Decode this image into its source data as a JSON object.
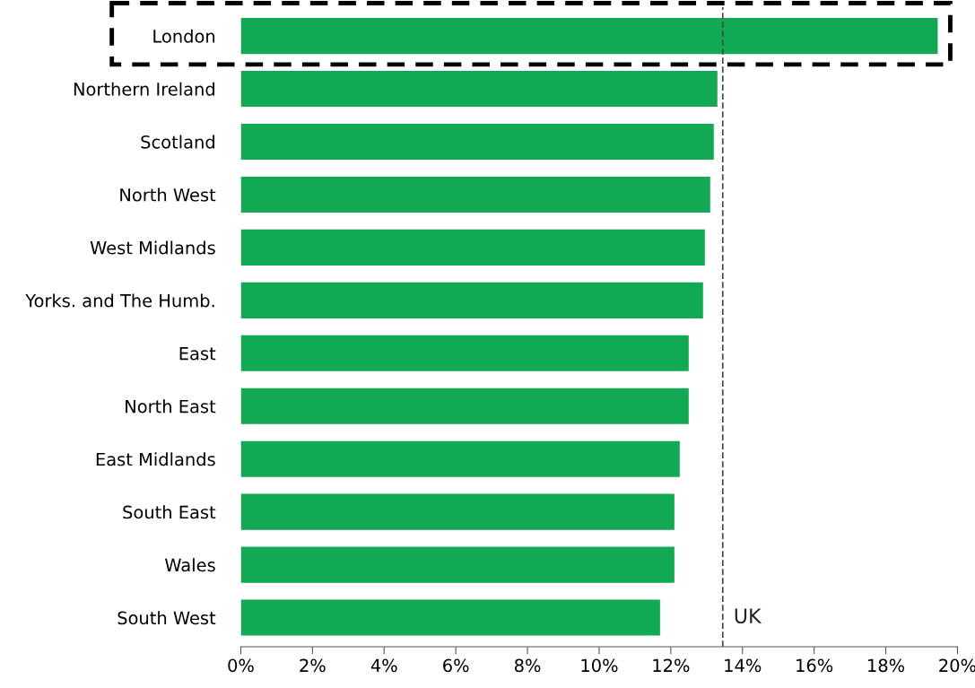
{
  "chart_data": {
    "type": "bar",
    "orientation": "horizontal",
    "categories": [
      "London",
      "Northern Ireland",
      "Scotland",
      "North West",
      "West Midlands",
      "Yorks. and The Humb.",
      "East",
      "North East",
      "East Midlands",
      "South East",
      "Wales",
      "South West"
    ],
    "values": [
      19.45,
      13.3,
      13.2,
      13.1,
      12.95,
      12.9,
      12.5,
      12.5,
      12.25,
      12.1,
      12.1,
      11.7
    ],
    "color": "#12a955",
    "xlim": [
      0,
      20
    ],
    "xticks": [
      {
        "value": 0,
        "label": "0%"
      },
      {
        "value": 2,
        "label": "2%"
      },
      {
        "value": 4,
        "label": "4%"
      },
      {
        "value": 6,
        "label": "6%"
      },
      {
        "value": 8,
        "label": "8%"
      },
      {
        "value": 10,
        "label": "10%"
      },
      {
        "value": 12,
        "label": "12%"
      },
      {
        "value": 14,
        "label": "14%"
      },
      {
        "value": 16,
        "label": "16%"
      },
      {
        "value": 18,
        "label": "18%"
      },
      {
        "value": 20,
        "label": "20%"
      }
    ],
    "ref_lines": [
      {
        "axis": "x",
        "value": 13.45,
        "label": "UK",
        "color": "#444444",
        "line_style": "dashed"
      }
    ],
    "grid": false,
    "legend": false
  }
}
